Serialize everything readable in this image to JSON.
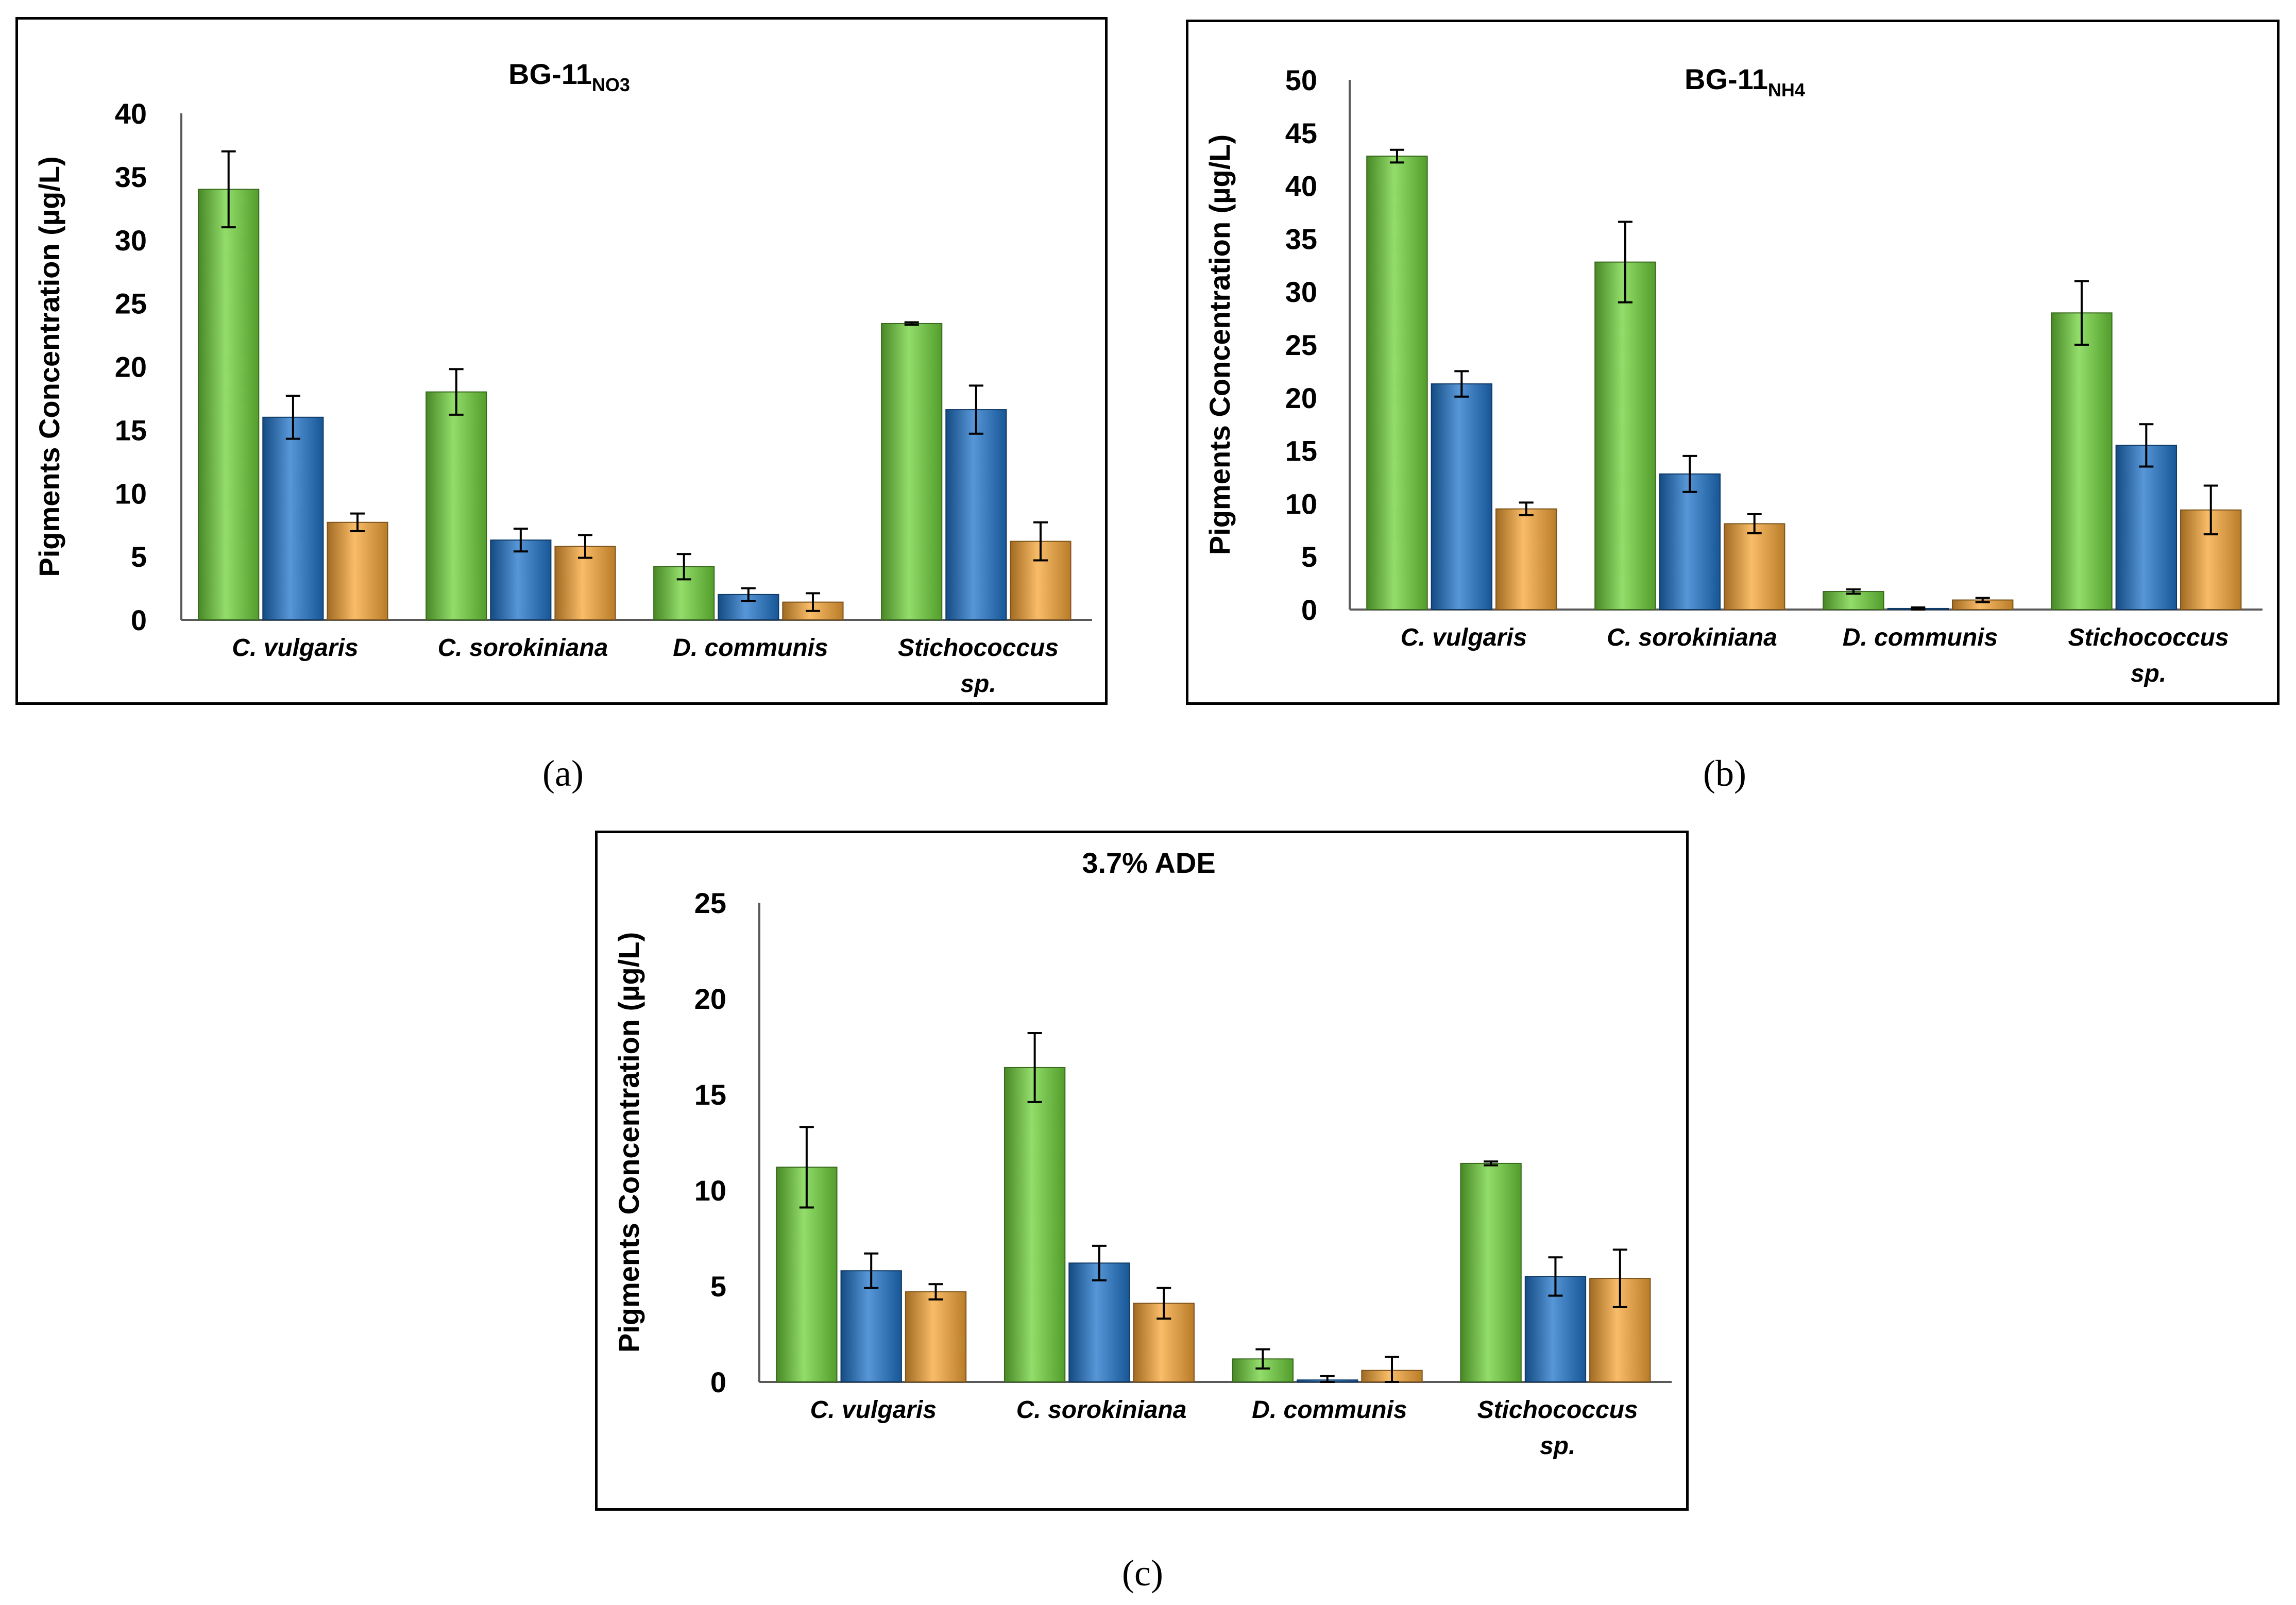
{
  "captions": {
    "a": "(a)",
    "b": "(b)",
    "c": "(c)"
  },
  "colors": {
    "series1": "#6fd13a",
    "series2": "#1f73c9",
    "series3": "#f7a535",
    "axis": "#595959",
    "border": "#000000"
  },
  "chart_data": [
    {
      "id": "a",
      "type": "bar",
      "title": "BG-11",
      "title_sub": "NO3",
      "ylabel": "Pigments Concentration (µg/L)",
      "xlabel": "",
      "ylim": [
        0,
        40
      ],
      "yticks": [
        0,
        5,
        10,
        15,
        20,
        25,
        30,
        35,
        40
      ],
      "categories": [
        [
          "C. vulgaris"
        ],
        [
          "C. sorokiniana"
        ],
        [
          "D. communis"
        ],
        [
          "Stichococcus",
          "sp."
        ]
      ],
      "series": [
        {
          "name": "series-1",
          "values": [
            34.0,
            18.0,
            4.2,
            23.4
          ],
          "errors": [
            3.0,
            1.8,
            1.0,
            0.1
          ]
        },
        {
          "name": "series-2",
          "values": [
            16.0,
            6.3,
            2.0,
            16.6
          ],
          "errors": [
            1.7,
            0.9,
            0.5,
            1.9
          ]
        },
        {
          "name": "series-3",
          "values": [
            7.7,
            5.8,
            1.4,
            6.2
          ],
          "errors": [
            0.7,
            0.9,
            0.7,
            1.5
          ]
        }
      ]
    },
    {
      "id": "b",
      "type": "bar",
      "title": "BG-11",
      "title_sub": "NH4",
      "ylabel": "Pigments Concentration (µg/L)",
      "xlabel": "",
      "ylim": [
        0,
        50
      ],
      "yticks": [
        0,
        5,
        10,
        15,
        20,
        25,
        30,
        35,
        40,
        45,
        50
      ],
      "categories": [
        [
          "C. vulgaris"
        ],
        [
          "C. sorokiniana"
        ],
        [
          "D. communis"
        ],
        [
          "Stichococcus",
          "sp."
        ]
      ],
      "series": [
        {
          "name": "series-1",
          "values": [
            42.8,
            32.8,
            1.7,
            28.0
          ],
          "errors": [
            0.6,
            3.8,
            0.2,
            3.0
          ]
        },
        {
          "name": "series-2",
          "values": [
            21.3,
            12.8,
            0.1,
            15.5
          ],
          "errors": [
            1.2,
            1.7,
            0.1,
            2.0
          ]
        },
        {
          "name": "series-3",
          "values": [
            9.5,
            8.1,
            0.9,
            9.4
          ],
          "errors": [
            0.6,
            0.9,
            0.2,
            2.3
          ]
        }
      ]
    },
    {
      "id": "c",
      "type": "bar",
      "title": "3.7% ADE",
      "title_sub": "",
      "ylabel": "Pigments Concentration (µg/L)",
      "xlabel": "",
      "ylim": [
        0,
        25
      ],
      "yticks": [
        0,
        5,
        10,
        15,
        20,
        25
      ],
      "categories": [
        [
          "C. vulgaris"
        ],
        [
          "C. sorokiniana"
        ],
        [
          "D. communis"
        ],
        [
          "Stichococcus",
          "sp."
        ]
      ],
      "series": [
        {
          "name": "series-1",
          "values": [
            11.2,
            16.4,
            1.2,
            11.4
          ],
          "errors": [
            2.1,
            1.8,
            0.5,
            0.1
          ]
        },
        {
          "name": "series-2",
          "values": [
            5.8,
            6.2,
            0.1,
            5.5
          ],
          "errors": [
            0.9,
            0.9,
            0.2,
            1.0
          ]
        },
        {
          "name": "series-3",
          "values": [
            4.7,
            4.1,
            0.6,
            5.4
          ],
          "errors": [
            0.4,
            0.8,
            0.7,
            1.5
          ]
        }
      ]
    }
  ]
}
